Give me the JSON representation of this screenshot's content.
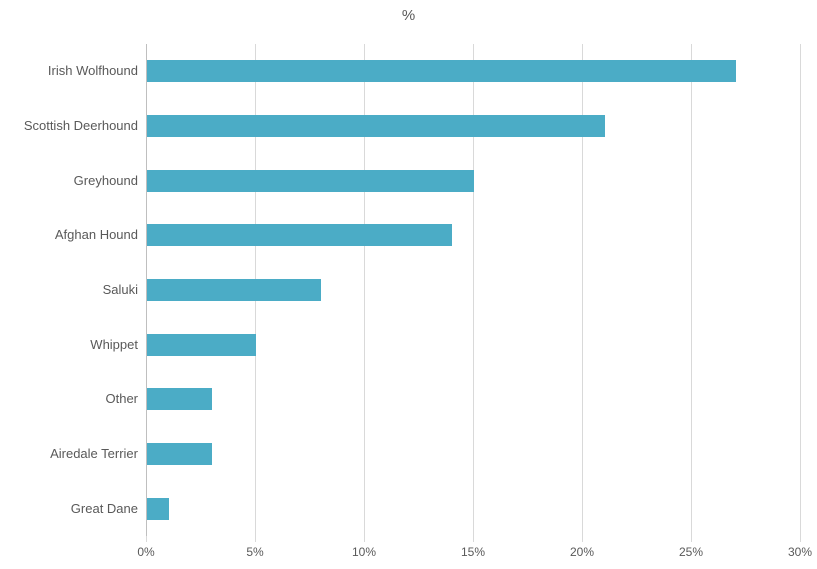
{
  "chart_data": {
    "type": "bar",
    "orientation": "horizontal",
    "title": "%",
    "categories": [
      "Irish Wolfhound",
      "Scottish Deerhound",
      "Greyhound",
      "Afghan Hound",
      "Saluki",
      "Whippet",
      "Other",
      "Airedale Terrier",
      "Great Dane"
    ],
    "values": [
      27,
      21,
      15,
      14,
      8,
      5,
      3,
      3,
      1
    ],
    "xlabel": "",
    "ylabel": "",
    "xlim": [
      0,
      30
    ],
    "x_tick_values": [
      0,
      5,
      10,
      15,
      20,
      25,
      30
    ],
    "x_tick_labels": [
      "0%",
      "5%",
      "10%",
      "15%",
      "20%",
      "25%",
      "30%"
    ],
    "grid": true,
    "legend": "none",
    "colors": {
      "bar": "#4BACC6",
      "gridline": "#D9D9D9",
      "axis_line": "#BFBFBF",
      "text": "#595959"
    }
  }
}
